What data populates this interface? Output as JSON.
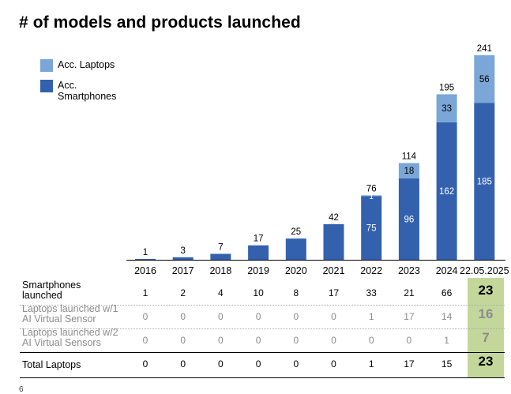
{
  "title": "# of models and products launched",
  "legend": [
    {
      "label": "Acc. Laptops",
      "color": "#7aa6d8"
    },
    {
      "label": "Acc. Smartphones",
      "color": "#3361ae"
    }
  ],
  "chart_data": {
    "type": "bar",
    "stacked": true,
    "categories": [
      "2016",
      "2017",
      "2018",
      "2019",
      "2020",
      "2021",
      "2022",
      "2023",
      "2024",
      "22.05.2025"
    ],
    "series": [
      {
        "name": "Acc. Smartphones",
        "values": [
          1,
          3,
          7,
          17,
          25,
          42,
          75,
          96,
          162,
          185
        ],
        "color": "#3361ae"
      },
      {
        "name": "Acc. Laptops",
        "values": [
          0,
          0,
          0,
          0,
          0,
          0,
          1,
          18,
          33,
          56
        ],
        "color": "#7aa6d8"
      }
    ],
    "totals": [
      1,
      3,
      7,
      17,
      25,
      42,
      76,
      114,
      195,
      241
    ],
    "ylim": [
      0,
      241
    ]
  },
  "table": {
    "rows": [
      {
        "label": "Smartphones launched",
        "values": [
          "1",
          "2",
          "4",
          "10",
          "8",
          "17",
          "33",
          "21",
          "66"
        ],
        "highlight": "23",
        "muted": false
      },
      {
        "label": "Laptops launched w/1 AI Virtual Sensor",
        "values": [
          "0",
          "0",
          "0",
          "0",
          "0",
          "0",
          "1",
          "17",
          "14"
        ],
        "highlight": "16",
        "muted": true
      },
      {
        "label": "Laptops launched w/2 AI Virtual Sensors",
        "values": [
          "0",
          "0",
          "0",
          "0",
          "0",
          "0",
          "0",
          "0",
          "1"
        ],
        "highlight": "7",
        "muted": true
      },
      {
        "label": "Total Laptops",
        "values": [
          "0",
          "0",
          "0",
          "0",
          "0",
          "0",
          "1",
          "17",
          "15"
        ],
        "highlight": "23",
        "muted": false
      }
    ]
  },
  "page_number": "6"
}
